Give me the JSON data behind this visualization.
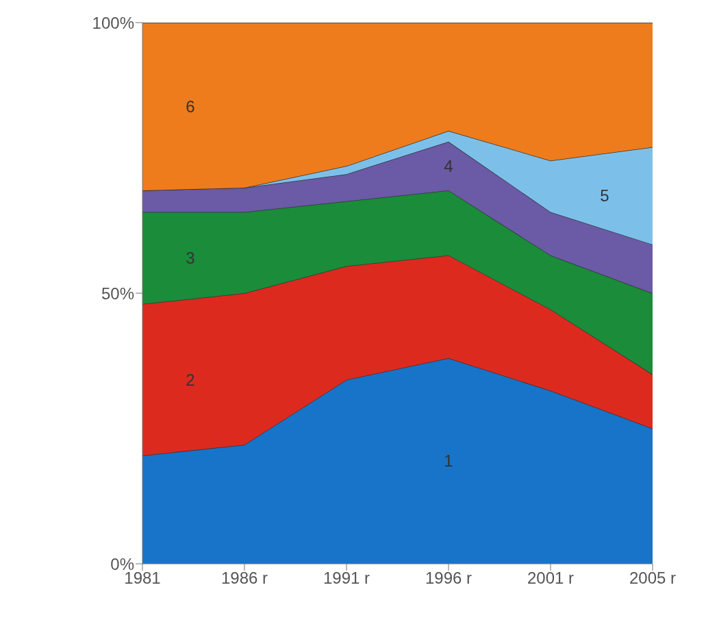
{
  "chart_data": {
    "type": "area",
    "stacked": true,
    "categories": [
      "1981",
      "1986 r",
      "1991 r",
      "1996 r",
      "2001 r",
      "2005 r"
    ],
    "series": [
      {
        "name": "1",
        "color": "#1874c8",
        "values": [
          20,
          22,
          34,
          38,
          32,
          25
        ]
      },
      {
        "name": "2",
        "color": "#dd2a1f",
        "values": [
          28,
          28,
          21,
          19,
          15,
          10
        ]
      },
      {
        "name": "3",
        "color": "#1a8c3a",
        "values": [
          17,
          15,
          12,
          12,
          10,
          15
        ]
      },
      {
        "name": "4",
        "color": "#6b5aa6",
        "values": [
          4,
          4.5,
          5,
          9,
          8,
          9
        ]
      },
      {
        "name": "5",
        "color": "#7cc0ea",
        "values": [
          0,
          0,
          1.5,
          2,
          9.5,
          18
        ]
      },
      {
        "name": "6",
        "color": "#ee7c1c",
        "values": [
          31,
          30.5,
          26.5,
          20,
          25.5,
          23
        ]
      }
    ],
    "ylim": [
      0,
      100
    ],
    "yticks": [
      {
        "value": 0,
        "label": "0%"
      },
      {
        "value": 50,
        "label": "50%"
      },
      {
        "value": 100,
        "label": "100%"
      }
    ]
  }
}
